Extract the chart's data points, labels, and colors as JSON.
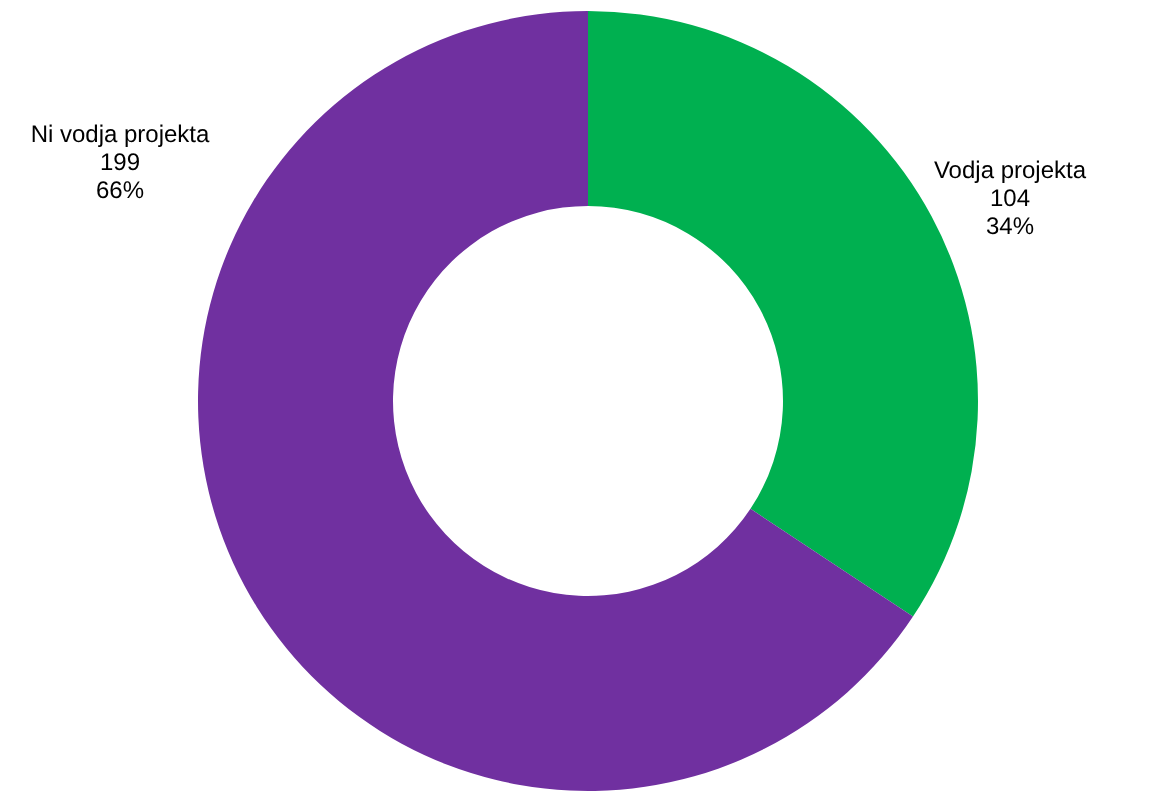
{
  "chart_data": {
    "type": "donut",
    "categories": [
      "Vodja projekta",
      "Ni vodja projekta"
    ],
    "values": [
      104,
      199
    ],
    "colors": [
      "#00b050",
      "#7030a0"
    ],
    "value_labels": [
      "104\n34%",
      "199\n66%"
    ]
  }
}
